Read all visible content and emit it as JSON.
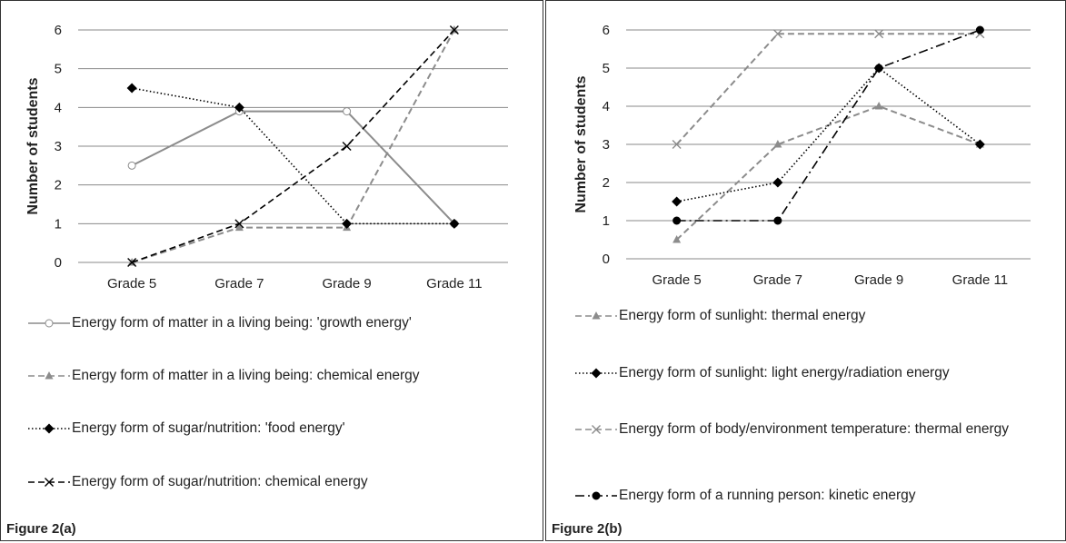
{
  "chart_data": [
    {
      "type": "line",
      "caption": "Figure 2(a)",
      "y_label": "Number of students",
      "categories": [
        "Grade 5",
        "Grade 7",
        "Grade 9",
        "Grade 11"
      ],
      "ylim": [
        0,
        6
      ],
      "yticks": [
        0,
        1,
        2,
        3,
        4,
        5,
        6
      ],
      "grid": true,
      "series": [
        {
          "name": "Energy form of matter in a living being: 'growth energy'",
          "color": "#8c8c8c",
          "dash": "solid",
          "marker": "open-circle",
          "values": [
            2.5,
            3.9,
            3.9,
            1
          ]
        },
        {
          "name": "Energy form of matter in a living being: chemical energy",
          "color": "#8c8c8c",
          "dash": "dashed",
          "marker": "triangle",
          "values": [
            0,
            0.9,
            0.9,
            6
          ]
        },
        {
          "name": "Energy form of sugar/nutrition: 'food energy'",
          "color": "#000000",
          "dash": "dotted",
          "marker": "diamond",
          "values": [
            4.5,
            4,
            1,
            1
          ]
        },
        {
          "name": "Energy form of sugar/nutrition: chemical energy",
          "color": "#000000",
          "dash": "dashed",
          "marker": "x",
          "values": [
            0,
            1,
            3,
            6
          ]
        }
      ]
    },
    {
      "type": "line",
      "caption": "Figure 2(b)",
      "y_label": "Number of students",
      "categories": [
        "Grade 5",
        "Grade 7",
        "Grade 9",
        "Grade 11"
      ],
      "ylim": [
        0,
        6
      ],
      "yticks": [
        0,
        1,
        2,
        3,
        4,
        5,
        6
      ],
      "grid": true,
      "series": [
        {
          "name": "Energy form of sunlight: thermal energy",
          "color": "#8c8c8c",
          "dash": "dashed",
          "marker": "triangle",
          "values": [
            0.5,
            3,
            4,
            3
          ]
        },
        {
          "name": "Energy form of sunlight: light energy/radiation energy",
          "color": "#000000",
          "dash": "dotted",
          "marker": "diamond",
          "values": [
            1.5,
            2,
            5,
            3
          ]
        },
        {
          "name": "Energy form of body/environment temperature: thermal energy",
          "color": "#8c8c8c",
          "dash": "dashed",
          "marker": "x",
          "values": [
            3,
            5.9,
            5.9,
            5.9
          ]
        },
        {
          "name": "Energy form of a running person: kinetic energy",
          "color": "#000000",
          "dash": "dashdot",
          "marker": "circle",
          "values": [
            1,
            1,
            5,
            6
          ]
        }
      ]
    }
  ]
}
